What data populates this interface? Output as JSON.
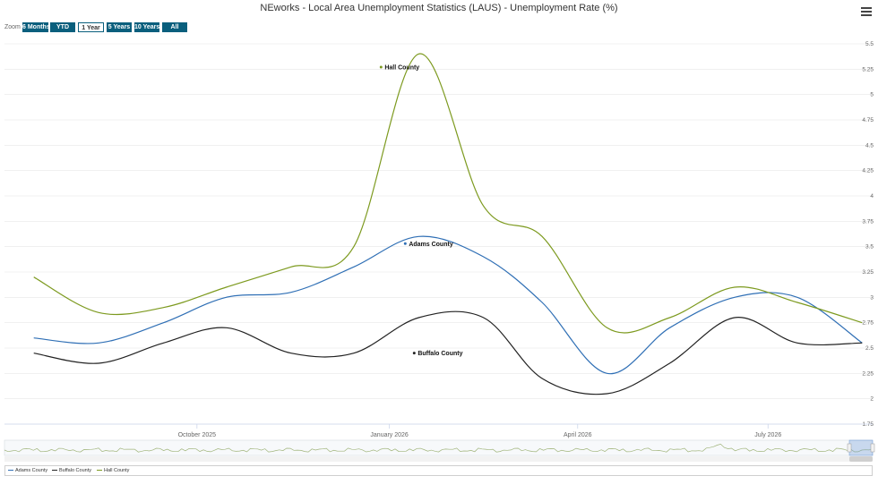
{
  "title": "NEworks - Local Area Unemployment Statistics (LAUS) - Unemployment Rate (%)",
  "zoom": {
    "label": "Zoom",
    "buttons": [
      "6 Months",
      "YTD",
      "1 Year",
      "5 Years",
      "10 Years",
      "All"
    ],
    "active": "1 Year"
  },
  "chart_data": {
    "type": "line",
    "x_axis_ticks": [
      "October 2025",
      "January 2026",
      "April 2026",
      "July 2026"
    ],
    "y_axis_ticks": [
      "1.75",
      "2",
      "2.25",
      "2.5",
      "2.75",
      "3",
      "3.25",
      "3.5",
      "3.75",
      "4",
      "4.25",
      "4.5",
      "4.75",
      "5",
      "5.25",
      "5.5"
    ],
    "ylim": [
      1.75,
      5.5
    ],
    "grid": true,
    "legend_position": "bottom",
    "x": [
      "2025-07-15",
      "2025-08-15",
      "2025-09-15",
      "2025-10-15",
      "2025-11-15",
      "2025-12-15",
      "2026-01-15",
      "2026-02-15",
      "2026-03-15",
      "2026-04-15",
      "2026-05-15",
      "2026-06-15",
      "2026-07-15",
      "2026-08-15"
    ],
    "series": [
      {
        "name": "Adams County",
        "color": "#2f6fb5",
        "label": "Adams County",
        "label_index": 6,
        "values": [
          2.6,
          2.55,
          2.75,
          3.0,
          3.05,
          3.3,
          3.6,
          3.4,
          2.95,
          2.25,
          2.7,
          3.0,
          3.0,
          2.55
        ]
      },
      {
        "name": "Buffalo County",
        "color": "#222222",
        "label": "Buffalo County",
        "label_index": 6,
        "values": [
          2.45,
          2.35,
          2.55,
          2.7,
          2.45,
          2.45,
          2.8,
          2.8,
          2.2,
          2.05,
          2.35,
          2.8,
          2.55,
          2.55
        ]
      },
      {
        "name": "Hall County",
        "color": "#7d9a1f",
        "label": "Hall County",
        "label_index": 6,
        "values": [
          3.2,
          2.85,
          2.9,
          3.1,
          3.3,
          3.5,
          5.4,
          3.9,
          3.6,
          2.7,
          2.8,
          3.1,
          2.95,
          2.75
        ]
      }
    ]
  }
}
